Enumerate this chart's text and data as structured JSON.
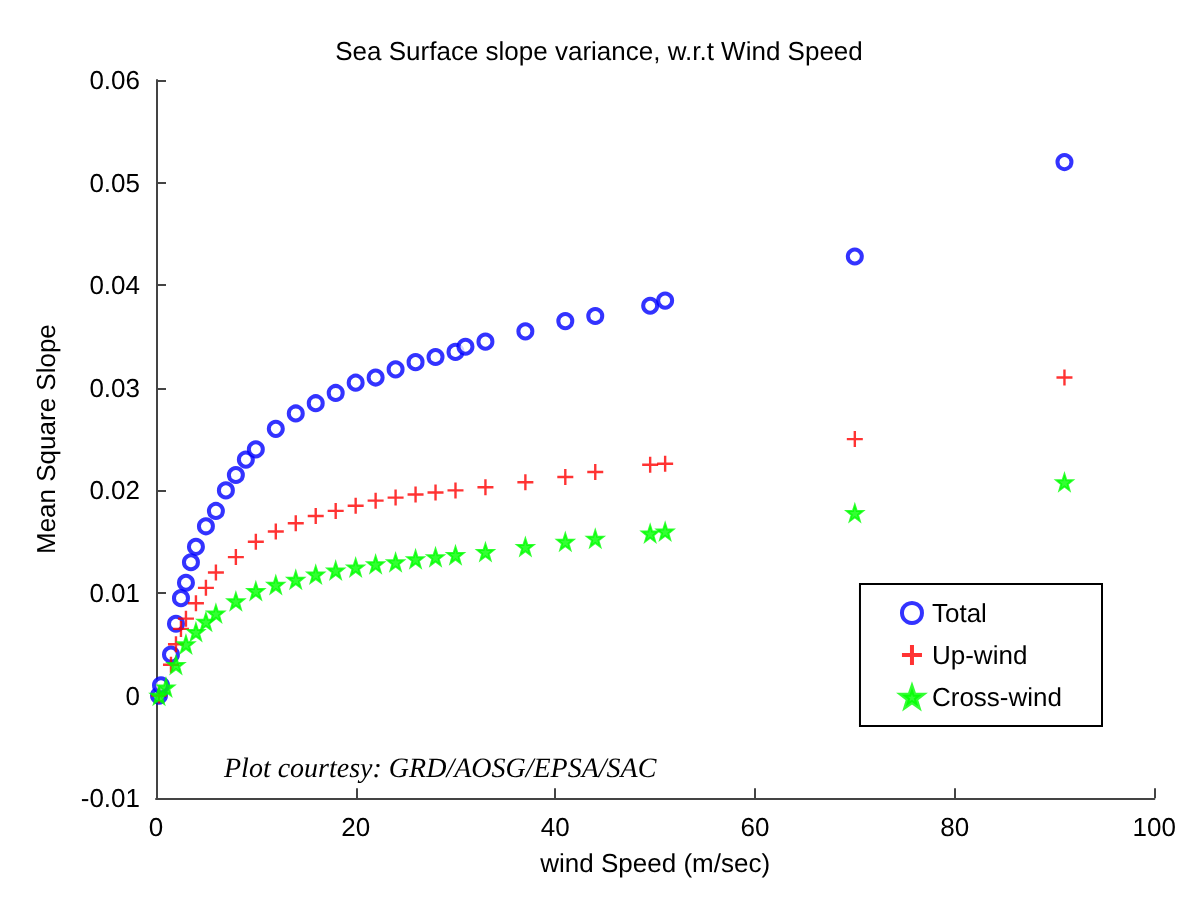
{
  "chart_data": {
    "type": "scatter",
    "title": "Sea Surface slope variance, w.r.t Wind Speed",
    "xlabel": "wind Speed (m/sec)",
    "ylabel": "Mean Square Slope",
    "annotations": [
      "Plot courtesy: GRD/AOSG/EPSA/SAC"
    ],
    "xlim": [
      0,
      100
    ],
    "xticks": [
      0,
      20,
      40,
      60,
      80,
      100
    ],
    "ylim": [
      -0.01,
      0.06
    ],
    "yticks": [
      -0.01,
      0,
      0.01,
      0.02,
      0.03,
      0.04,
      0.05,
      0.06
    ],
    "grid": false,
    "legend": "bottom right",
    "series": [
      {
        "name": "Total",
        "color": "#0000ff",
        "marker": "circle",
        "x": [
          0.3,
          0.5,
          1.5,
          2,
          2.5,
          3,
          3.5,
          4,
          5,
          6,
          7,
          8,
          9,
          10,
          12,
          14,
          16,
          18,
          20,
          22,
          24,
          26,
          28,
          30,
          31,
          33,
          37,
          41,
          44,
          49.5,
          51,
          70,
          91
        ],
        "values": [
          0,
          0.001,
          0.004,
          0.007,
          0.0095,
          0.011,
          0.013,
          0.0145,
          0.0165,
          0.018,
          0.02,
          0.0215,
          0.023,
          0.024,
          0.026,
          0.0275,
          0.0285,
          0.0295,
          0.0305,
          0.031,
          0.0318,
          0.0325,
          0.033,
          0.0335,
          0.034,
          0.0345,
          0.0355,
          0.0365,
          0.037,
          0.038,
          0.0385,
          0.0428,
          0.052
        ]
      },
      {
        "name": "Up-wind",
        "color": "#ff0000",
        "marker": "cross",
        "x": [
          0.3,
          1,
          1.5,
          2,
          2.5,
          3,
          4,
          5,
          6,
          8,
          10,
          12,
          14,
          16,
          18,
          20,
          22,
          24,
          26,
          28,
          30,
          33,
          37,
          41,
          44,
          49.5,
          51,
          70,
          91
        ],
        "values": [
          0,
          null,
          0.003,
          0.005,
          0.0065,
          0.0075,
          0.009,
          0.0105,
          0.012,
          0.0135,
          0.015,
          0.016,
          0.0168,
          0.0175,
          0.018,
          0.0185,
          0.019,
          0.0193,
          0.0196,
          0.0198,
          0.02,
          0.0203,
          0.0208,
          0.0213,
          0.0218,
          0.0225,
          0.0226,
          0.025,
          0.031
        ]
      },
      {
        "name": "Cross-wind",
        "color": "#00ff00",
        "marker": "star",
        "x": [
          0.3,
          1,
          2,
          3,
          4,
          5,
          6,
          8,
          10,
          12,
          14,
          16,
          18,
          20,
          22,
          24,
          26,
          28,
          30,
          33,
          37,
          41,
          44,
          49.5,
          51,
          70,
          91
        ],
        "values": [
          0,
          0.0008,
          0.003,
          0.005,
          0.0062,
          0.0072,
          0.008,
          0.0092,
          0.0102,
          0.0108,
          0.0113,
          0.0118,
          0.0122,
          0.0125,
          0.0128,
          0.013,
          0.0133,
          0.0135,
          0.0137,
          0.014,
          0.0145,
          0.015,
          0.0153,
          0.0158,
          0.016,
          0.0178,
          0.0208
        ]
      }
    ]
  }
}
